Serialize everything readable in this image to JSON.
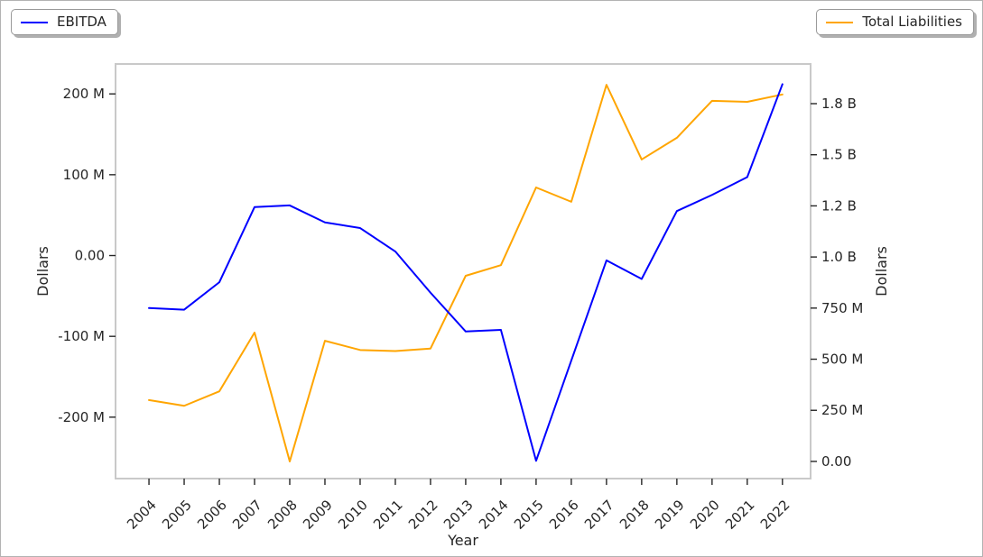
{
  "legends": [
    {
      "label": "EBITDA",
      "color": "#0000ff",
      "position": "upper left"
    },
    {
      "label": "Total Liabilities",
      "color": "#ffa500",
      "position": "upper right"
    }
  ],
  "chart_data": {
    "type": "line",
    "title": "",
    "xlabel": "Year",
    "ylabel_left": "Dollars",
    "ylabel_right": "Dollars",
    "grid": false,
    "x": [
      2004,
      2005,
      2006,
      2007,
      2008,
      2009,
      2010,
      2011,
      2012,
      2013,
      2014,
      2015,
      2016,
      2017,
      2018,
      2019,
      2020,
      2021,
      2022
    ],
    "series": [
      {
        "name": "EBITDA",
        "axis": "left",
        "color": "#0000ff",
        "unit": "USD millions",
        "values": [
          -65,
          -67,
          -33,
          60,
          62,
          41,
          34,
          5,
          -46,
          -94,
          -92,
          -254,
          -130,
          -6,
          -29,
          55,
          75,
          97,
          212
        ]
      },
      {
        "name": "Total Liabilities",
        "axis": "right",
        "color": "#ffa500",
        "unit": "USD millions",
        "values": [
          300,
          272,
          343,
          630,
          0,
          590,
          545,
          540,
          552,
          908,
          960,
          1340,
          1270,
          1842,
          1477,
          1583,
          1764,
          1759,
          1795
        ]
      }
    ],
    "x_axis": {
      "range": [
        2003.05,
        2022.8
      ],
      "tick_rotation": 45,
      "ticks": [
        {
          "value": 2004,
          "label": "2004"
        },
        {
          "value": 2005,
          "label": "2005"
        },
        {
          "value": 2006,
          "label": "2006"
        },
        {
          "value": 2007,
          "label": "2007"
        },
        {
          "value": 2008,
          "label": "2008"
        },
        {
          "value": 2009,
          "label": "2009"
        },
        {
          "value": 2010,
          "label": "2010"
        },
        {
          "value": 2011,
          "label": "2011"
        },
        {
          "value": 2012,
          "label": "2012"
        },
        {
          "value": 2013,
          "label": "2013"
        },
        {
          "value": 2014,
          "label": "2014"
        },
        {
          "value": 2015,
          "label": "2015"
        },
        {
          "value": 2016,
          "label": "2016"
        },
        {
          "value": 2017,
          "label": "2017"
        },
        {
          "value": 2018,
          "label": "2018"
        },
        {
          "value": 2019,
          "label": "2019"
        },
        {
          "value": 2020,
          "label": "2020"
        },
        {
          "value": 2021,
          "label": "2021"
        },
        {
          "value": 2022,
          "label": "2022"
        }
      ]
    },
    "left_axis": {
      "unit": "USD millions",
      "range": [
        -276,
        237
      ],
      "ticks": [
        {
          "value": -200,
          "label": "-200 M"
        },
        {
          "value": -100,
          "label": "-100 M"
        },
        {
          "value": 0,
          "label": "0.00"
        },
        {
          "value": 100,
          "label": "100 M"
        },
        {
          "value": 200,
          "label": "200 M"
        }
      ]
    },
    "right_axis": {
      "unit": "USD millions",
      "range": [
        -84,
        1944
      ],
      "ticks": [
        {
          "value": 0,
          "label": "0.00"
        },
        {
          "value": 250,
          "label": "250 M"
        },
        {
          "value": 500,
          "label": "500 M"
        },
        {
          "value": 750,
          "label": "750 M"
        },
        {
          "value": 1000,
          "label": "1.0 B"
        },
        {
          "value": 1250,
          "label": "1.2 B"
        },
        {
          "value": 1500,
          "label": "1.5 B"
        },
        {
          "value": 1750,
          "label": "1.8 B"
        }
      ]
    }
  }
}
